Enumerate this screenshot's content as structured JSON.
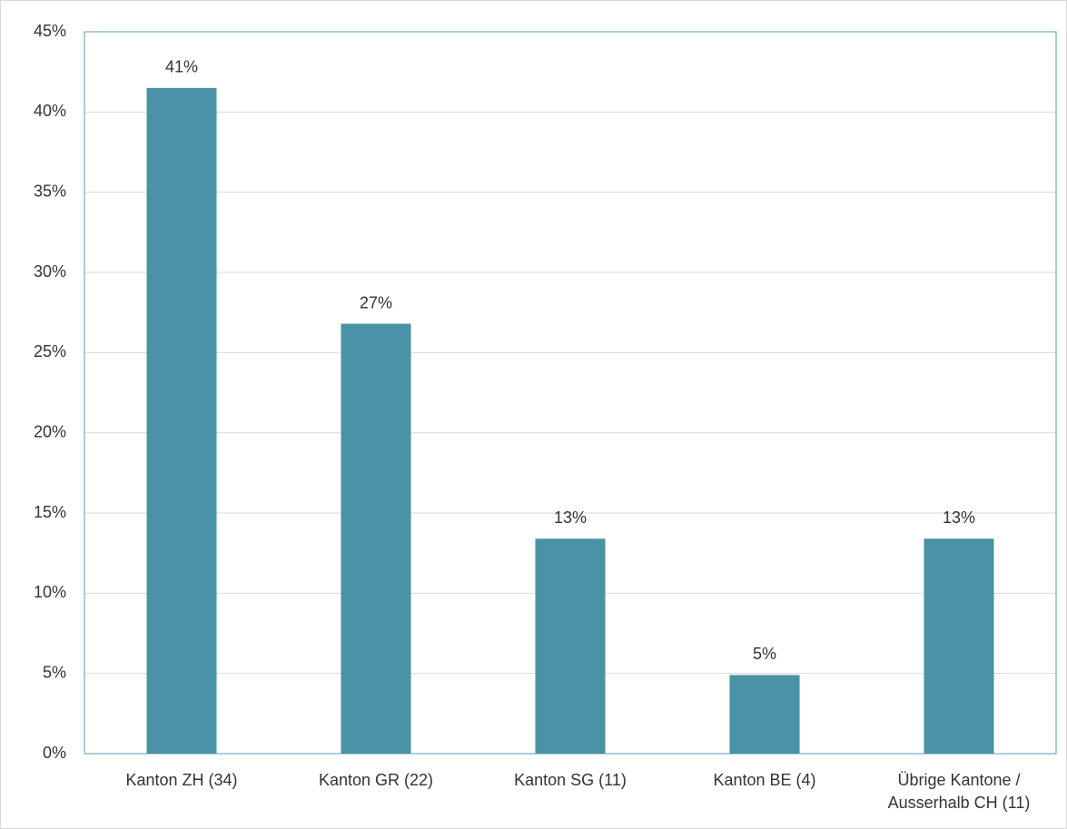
{
  "chart_data": {
    "type": "bar",
    "categories": [
      "Kanton ZH (34)",
      "Kanton GR (22)",
      "Kanton SG (11)",
      "Kanton BE (4)",
      "Übrige Kantone / Ausserhalb CH (11)"
    ],
    "values": [
      41.5,
      26.8,
      13.4,
      4.9,
      13.4
    ],
    "value_labels": [
      "41%",
      "27%",
      "13%",
      "5%",
      "13%"
    ],
    "color": "#4a92a5",
    "ylim": [
      0,
      45
    ],
    "yticks": [
      {
        "value": 0,
        "label": "0%"
      },
      {
        "value": 5,
        "label": "5%"
      },
      {
        "value": 10,
        "label": "10%"
      },
      {
        "value": 15,
        "label": "15%"
      },
      {
        "value": 20,
        "label": "20%"
      },
      {
        "value": 25,
        "label": "25%"
      },
      {
        "value": 30,
        "label": "30%"
      },
      {
        "value": 35,
        "label": "35%"
      },
      {
        "value": 40,
        "label": "40%"
      },
      {
        "value": 45,
        "label": "45%"
      }
    ],
    "grid": true
  }
}
